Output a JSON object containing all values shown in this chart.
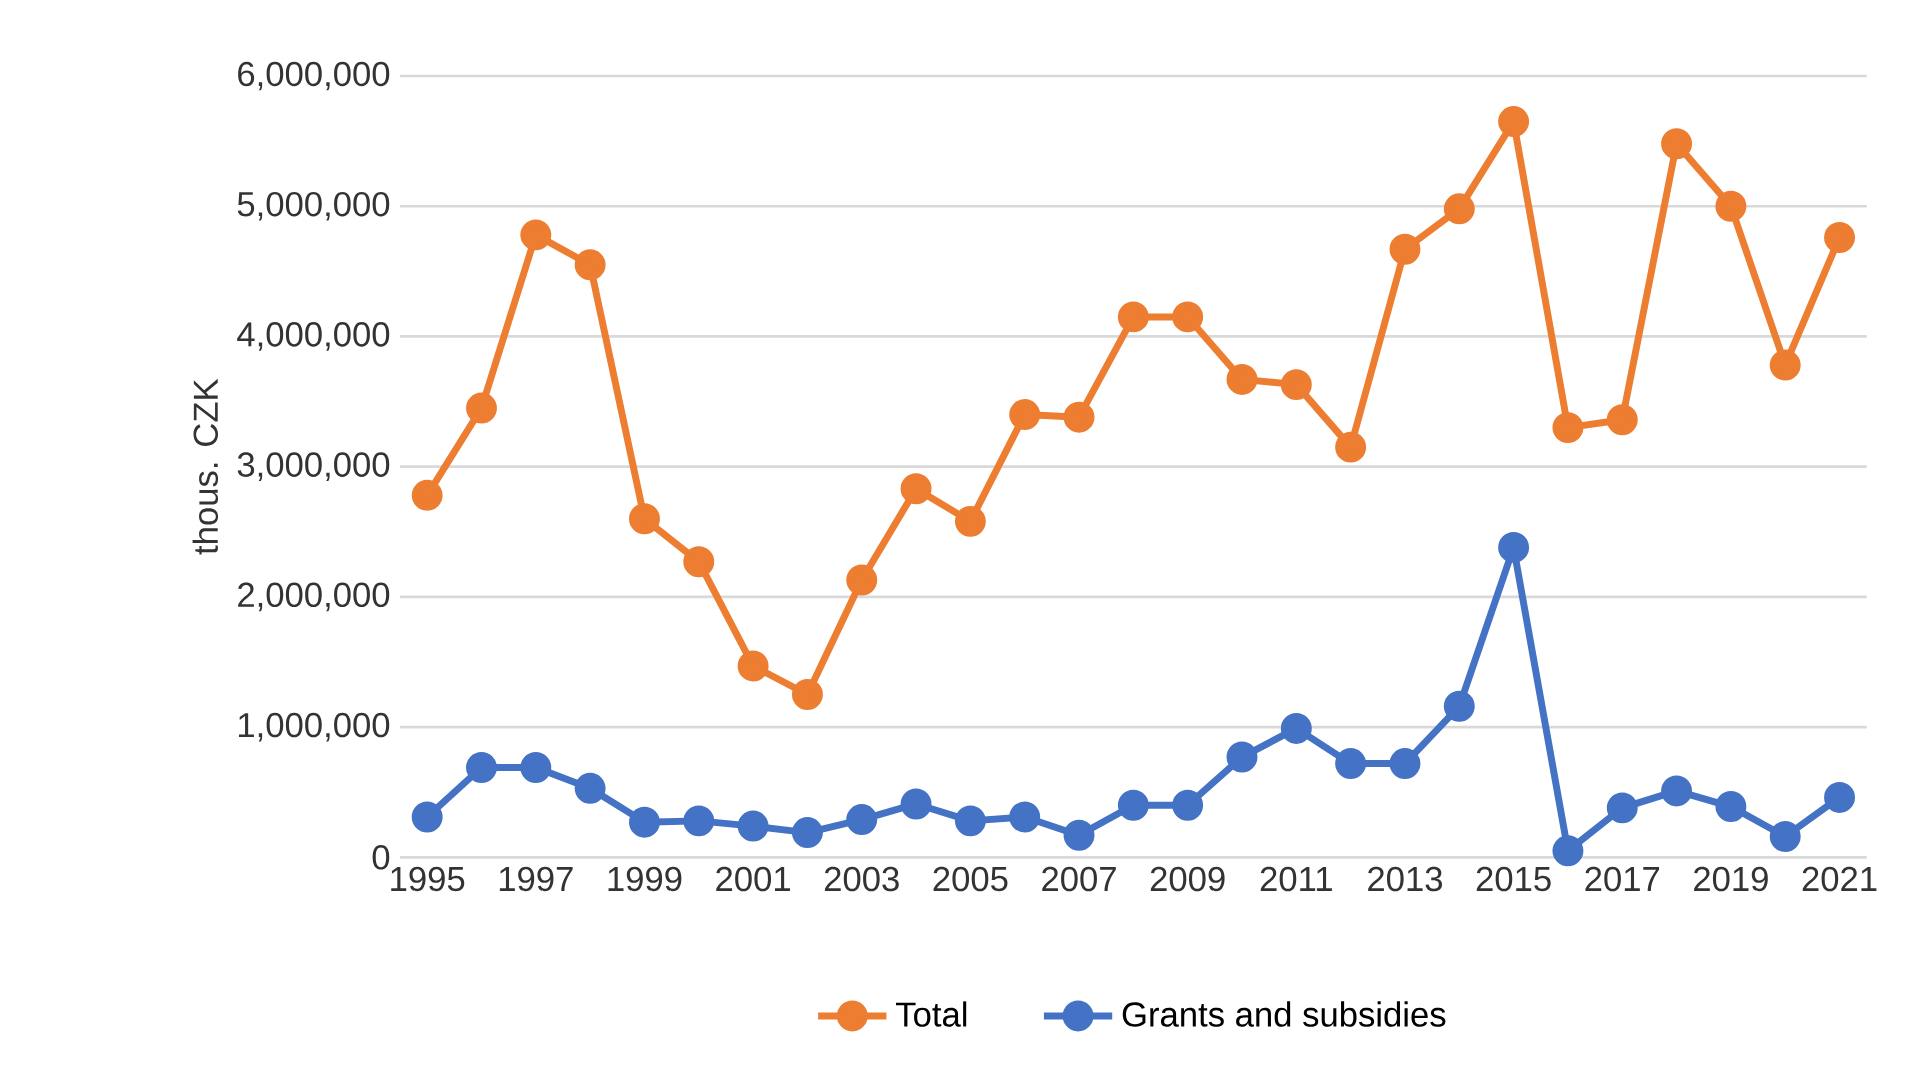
{
  "chart_data": {
    "type": "line",
    "ylabel": "thous. CZK",
    "categories": [
      "1995",
      null,
      "1997",
      null,
      "1999",
      null,
      "2001",
      null,
      "2003",
      null,
      "2005",
      null,
      "2007",
      null,
      "2009",
      null,
      "2011",
      null,
      "2013",
      null,
      "2015",
      null,
      "2017",
      null,
      "2019",
      null,
      "2021"
    ],
    "series": [
      {
        "name": "Total",
        "color": "#ed7d31",
        "values": [
          2780000,
          3450000,
          4780000,
          4550000,
          2600000,
          2270000,
          1470000,
          1250000,
          2130000,
          2830000,
          2580000,
          3400000,
          3380000,
          4150000,
          4150000,
          3670000,
          3630000,
          3150000,
          4670000,
          4980000,
          5650000,
          3300000,
          3360000,
          5480000,
          5000000,
          3780000,
          4760000
        ]
      },
      {
        "name": "Grants and subsidies",
        "color": "#4472c4",
        "values": [
          310000,
          690000,
          690000,
          530000,
          270000,
          280000,
          240000,
          190000,
          290000,
          410000,
          280000,
          310000,
          170000,
          400000,
          400000,
          770000,
          990000,
          720000,
          720000,
          1160000,
          2380000,
          50000,
          380000,
          510000,
          390000,
          160000,
          460000
        ]
      }
    ],
    "ylim": [
      0,
      6000000
    ],
    "yticks": [
      {
        "value": 0,
        "label": "0"
      },
      {
        "value": 1000000,
        "label": "1,000,000"
      },
      {
        "value": 2000000,
        "label": "2,000,000"
      },
      {
        "value": 3000000,
        "label": "3,000,000"
      },
      {
        "value": 4000000,
        "label": "4,000,000"
      },
      {
        "value": 5000000,
        "label": "5,000,000"
      },
      {
        "value": 6000000,
        "label": "6,000,000"
      }
    ],
    "grid": "y",
    "legend": "bottom",
    "marker": "circle",
    "line_style": "solid"
  }
}
